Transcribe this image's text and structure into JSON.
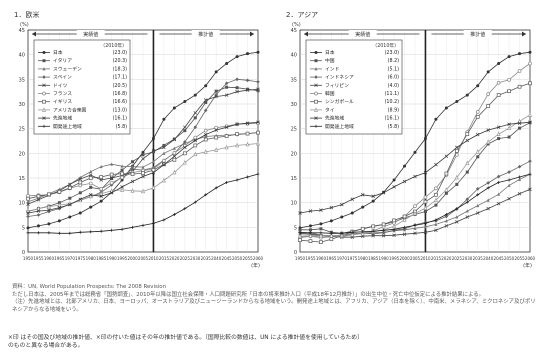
{
  "figure": {
    "source_note": "資料：UN, World Population Prospects: The 2008 Revision",
    "source_note_2": "ただし日本は、2005年までは総務省「国勢調査」、2010年以降は国立社会保障・人口問題研究所「日本の将来推計人口（平成18年12月推計）」の出生中位・死亡中位仮定による推計結果による。",
    "source_note_3": "（注）先進地域とは、北部アメリカ、日本、ヨーロッパ、オーストラリア及びニュージーランドからなる地域をいう。開発途上地域とは、アフリカ、アジア（日本を除く）、中南米、メラネシア、ミクロネシア及びポリネシアからなる地域をいう。",
    "footer_line_1": "×印 はその国及び地域の推計値、×印の付いた値はその年の推計値である。〔国際比較の数値は、UN による推計値を使用しているため〕",
    "footer_line_2": "のものと異なる場合がある。"
  },
  "chart_data": [
    {
      "type": "line",
      "panel_title": "1．欧米",
      "ylabel": "(%)",
      "xlabel": "(年)",
      "region_left": "実績値",
      "region_right": "推計値",
      "legend_year": "（2010年）",
      "x": [
        1950,
        1955,
        1960,
        1965,
        1970,
        1975,
        1980,
        1985,
        1990,
        1995,
        2000,
        2005,
        2010,
        2015,
        2020,
        2025,
        2030,
        2035,
        2040,
        2045,
        2050,
        2055,
        2060
      ],
      "ylim": [
        0,
        45
      ],
      "yticks": [
        0,
        5,
        10,
        15,
        20,
        25,
        30,
        35,
        40,
        45
      ],
      "divider_year": 2010,
      "series": [
        {
          "name": "日本",
          "legend_value": "(23.0)",
          "color": "#333333",
          "values": [
            4.9,
            5.3,
            5.7,
            6.3,
            7.1,
            7.9,
            9.1,
            10.3,
            12.1,
            14.6,
            17.4,
            20.2,
            23.0,
            26.9,
            29.2,
            30.5,
            31.8,
            33.7,
            36.5,
            38.2,
            39.6,
            40.2,
            40.5
          ]
        },
        {
          "name": "イタリア",
          "legend_value": "(20.3)",
          "color": "#555555",
          "values": [
            8.2,
            8.8,
            9.3,
            10.0,
            10.9,
            12.0,
            13.1,
            12.7,
            14.9,
            16.6,
            18.3,
            19.7,
            20.3,
            21.6,
            22.9,
            24.6,
            27.2,
            30.3,
            32.6,
            33.4,
            33.3,
            33.0,
            32.7
          ]
        },
        {
          "name": "スウェーデン",
          "legend_value": "(18.3)",
          "color": "#777777",
          "values": [
            10.2,
            10.9,
            11.8,
            12.7,
            13.7,
            15.1,
            16.3,
            17.3,
            17.8,
            17.4,
            17.3,
            17.2,
            18.3,
            20.0,
            21.0,
            22.0,
            22.8,
            23.4,
            23.6,
            23.7,
            23.8,
            24.0,
            24.2
          ]
        },
        {
          "name": "スペイン",
          "legend_value": "(17.1)",
          "color": "#666666",
          "values": [
            7.2,
            7.5,
            8.2,
            8.8,
            9.7,
            10.5,
            11.2,
            12.1,
            13.6,
            15.3,
            16.8,
            16.6,
            17.1,
            18.6,
            20.0,
            22.3,
            25.3,
            28.7,
            31.9,
            34.2,
            35.0,
            34.8,
            34.5
          ]
        },
        {
          "name": "ドイツ",
          "legend_value": "(20.5)",
          "color": "#444444",
          "values": [
            9.7,
            10.6,
            11.5,
            12.4,
            13.7,
            14.8,
            15.6,
            14.6,
            15.0,
            15.5,
            16.3,
            18.9,
            20.5,
            21.2,
            22.8,
            25.3,
            28.2,
            30.8,
            31.5,
            31.8,
            32.5,
            32.8,
            33.0
          ]
        },
        {
          "name": "フランス",
          "legend_value": "(16.8)",
          "color": "#888888",
          "values": [
            11.4,
            11.5,
            11.6,
            12.1,
            12.9,
            13.5,
            13.9,
            12.8,
            14.0,
            15.1,
            16.1,
            16.5,
            16.8,
            18.5,
            20.1,
            21.5,
            23.2,
            24.6,
            25.2,
            25.5,
            25.9,
            26.0,
            26.1
          ]
        },
        {
          "name": "イギリス",
          "legend_value": "(16.6)",
          "color": "#5a5a5a",
          "values": [
            10.8,
            11.3,
            11.7,
            12.2,
            13.0,
            14.1,
            15.0,
            15.2,
            15.7,
            15.9,
            15.8,
            16.0,
            16.6,
            17.8,
            18.7,
            20.0,
            21.6,
            22.8,
            23.2,
            23.5,
            23.9,
            24.0,
            24.2
          ]
        },
        {
          "name": "アメリカ合衆国",
          "legend_value": "(13.0)",
          "color": "#999999",
          "values": [
            8.3,
            8.8,
            9.2,
            9.5,
            9.8,
            10.5,
            11.3,
            11.8,
            12.4,
            12.6,
            12.4,
            12.3,
            13.0,
            14.5,
            16.1,
            18.1,
            19.8,
            20.3,
            20.7,
            21.2,
            21.6,
            21.8,
            22.0
          ]
        },
        {
          "name": "先進地域",
          "legend_value": "(16.1)",
          "color": "#3a3a3a",
          "values": [
            7.9,
            8.3,
            8.5,
            9.0,
            9.6,
            10.7,
            11.6,
            11.3,
            12.0,
            13.2,
            14.3,
            15.3,
            16.1,
            17.7,
            19.4,
            21.2,
            22.6,
            23.8,
            24.7,
            25.3,
            25.9,
            26.1,
            26.3
          ]
        },
        {
          "name": "開発途上地域",
          "legend_value": "(5.8)",
          "color": "#222222",
          "values": [
            3.9,
            3.9,
            3.9,
            3.8,
            3.8,
            4.0,
            4.1,
            4.2,
            4.4,
            4.6,
            5.0,
            5.4,
            5.8,
            6.5,
            7.6,
            8.8,
            10.1,
            11.6,
            13.0,
            14.1,
            14.6,
            15.2,
            15.8
          ]
        }
      ]
    },
    {
      "type": "line",
      "panel_title": "2．アジア",
      "ylabel": "(%)",
      "xlabel": "(年)",
      "region_left": "実績値",
      "region_right": "推計値",
      "legend_year": "（2010年）",
      "x": [
        1950,
        1955,
        1960,
        1965,
        1970,
        1975,
        1980,
        1985,
        1990,
        1995,
        2000,
        2005,
        2010,
        2015,
        2020,
        2025,
        2030,
        2035,
        2040,
        2045,
        2050,
        2055,
        2060
      ],
      "ylim": [
        0,
        45
      ],
      "yticks": [
        0,
        5,
        10,
        15,
        20,
        25,
        30,
        35,
        40,
        45
      ],
      "divider_year": 2010,
      "series": [
        {
          "name": "日本",
          "legend_value": "(23.0)",
          "color": "#333333",
          "values": [
            4.9,
            5.3,
            5.7,
            6.3,
            7.1,
            7.9,
            9.1,
            10.3,
            12.1,
            14.6,
            17.4,
            20.2,
            23.0,
            26.9,
            29.2,
            30.5,
            31.8,
            33.7,
            36.5,
            38.2,
            39.6,
            40.2,
            40.5
          ]
        },
        {
          "name": "中国",
          "legend_value": "(8.2)",
          "color": "#555555",
          "values": [
            4.5,
            4.5,
            4.7,
            4.0,
            3.8,
            4.2,
            4.7,
            5.2,
            5.6,
            6.1,
            6.9,
            7.6,
            8.2,
            9.5,
            11.9,
            13.7,
            16.2,
            19.3,
            21.9,
            23.0,
            23.3,
            25.1,
            26.2
          ]
        },
        {
          "name": "インド",
          "legend_value": "(5.1)",
          "color": "#777777",
          "values": [
            3.1,
            3.3,
            3.2,
            3.3,
            3.4,
            3.7,
            3.8,
            3.9,
            4.0,
            4.3,
            4.5,
            4.8,
            5.1,
            5.6,
            6.3,
            7.1,
            8.3,
            9.4,
            10.5,
            11.7,
            13.5,
            14.7,
            15.8
          ]
        },
        {
          "name": "インドネシア",
          "legend_value": "(6.0)",
          "color": "#666666",
          "values": [
            4.0,
            3.9,
            3.4,
            3.3,
            3.3,
            3.6,
            3.8,
            3.7,
            3.9,
            4.4,
            4.7,
            5.5,
            6.0,
            6.3,
            7.2,
            8.7,
            10.7,
            12.8,
            14.0,
            15.3,
            16.2,
            17.3,
            18.4
          ]
        },
        {
          "name": "フィリピン",
          "legend_value": "(4.0)",
          "color": "#444444",
          "values": [
            3.7,
            3.6,
            3.3,
            3.2,
            3.0,
            3.0,
            3.2,
            3.3,
            3.3,
            3.4,
            3.6,
            3.8,
            4.0,
            4.4,
            5.3,
            6.1,
            7.1,
            7.9,
            8.8,
            9.8,
            10.8,
            11.8,
            12.7
          ]
        },
        {
          "name": "韓国",
          "legend_value": "(11.1)",
          "color": "#888888",
          "values": [
            2.9,
            3.2,
            2.9,
            3.1,
            3.1,
            3.5,
            3.8,
            4.3,
            5.1,
            5.9,
            7.2,
            9.3,
            11.1,
            12.9,
            15.6,
            19.7,
            24.3,
            28.4,
            32.0,
            34.3,
            34.9,
            36.7,
            38.2
          ]
        },
        {
          "name": "シンガポール",
          "legend_value": "(10.2)",
          "color": "#5a5a5a",
          "values": [
            2.4,
            2.2,
            2.0,
            2.6,
            3.3,
            4.1,
            4.7,
            5.2,
            5.6,
            6.4,
            7.2,
            8.2,
            10.2,
            11.6,
            15.9,
            20.5,
            23.9,
            27.4,
            29.6,
            31.8,
            32.6,
            33.5,
            34.2
          ]
        },
        {
          "name": "タイ",
          "legend_value": "(8.9)",
          "color": "#999999",
          "values": [
            3.2,
            3.3,
            3.3,
            3.3,
            3.4,
            3.5,
            3.7,
            4.1,
            4.5,
            5.2,
            6.5,
            7.8,
            8.9,
            10.5,
            12.6,
            15.1,
            18.0,
            20.3,
            22.3,
            23.9,
            25.1,
            26.5,
            27.8
          ]
        },
        {
          "name": "先進地域",
          "legend_value": "(16.1)",
          "color": "#3a3a3a",
          "values": [
            7.9,
            8.3,
            8.5,
            9.0,
            9.6,
            10.7,
            11.6,
            11.3,
            12.0,
            13.2,
            14.3,
            15.3,
            16.1,
            17.7,
            19.4,
            21.2,
            22.6,
            23.8,
            24.7,
            25.3,
            25.9,
            26.1,
            26.3
          ]
        },
        {
          "name": "開発途上地域",
          "legend_value": "(5.8)",
          "color": "#222222",
          "values": [
            3.9,
            3.9,
            3.9,
            3.8,
            3.8,
            4.0,
            4.1,
            4.2,
            4.4,
            4.6,
            5.0,
            5.4,
            5.8,
            6.5,
            7.6,
            8.8,
            10.1,
            11.6,
            13.0,
            14.1,
            14.6,
            15.2,
            15.8
          ]
        }
      ]
    }
  ]
}
